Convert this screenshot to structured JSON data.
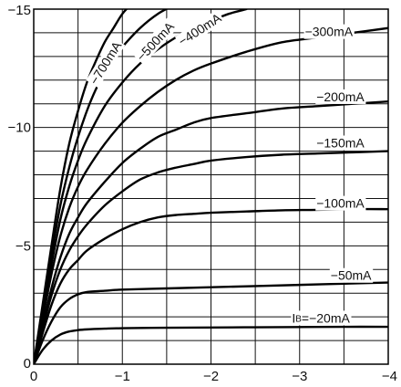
{
  "chart_data": {
    "type": "line",
    "title": "",
    "xlabel": "",
    "ylabel": "",
    "xlim": [
      0,
      -4
    ],
    "ylim": [
      0,
      -15
    ],
    "grid": true,
    "x_ticks": [
      0,
      -0.5,
      -1,
      -1.5,
      -2,
      -2.5,
      -3,
      -3.5,
      -4
    ],
    "x_tick_labels": [
      "0",
      "",
      "−1",
      "",
      "−2",
      "",
      "−3",
      "",
      "−4"
    ],
    "y_ticks": [
      0,
      -1,
      -2,
      -3,
      -4,
      -5,
      -6,
      -7,
      -8,
      -9,
      -10,
      -11,
      -12,
      -13,
      -14,
      -15
    ],
    "y_tick_labels": [
      "0",
      "",
      "",
      "",
      "",
      "−5",
      "",
      "",
      "",
      "",
      "−10",
      "",
      "",
      "",
      "",
      "−15"
    ],
    "series": [
      {
        "name": "−700mA",
        "x": [
          0,
          -0.1,
          -0.2,
          -0.3,
          -0.4,
          -0.5,
          -0.6,
          -0.7,
          -0.8,
          -0.9,
          -1.0,
          -1.1,
          -1.2
        ],
        "y": [
          0,
          -2.5,
          -5.0,
          -7.4,
          -9.3,
          -10.7,
          -11.9,
          -12.8,
          -13.6,
          -14.2,
          -14.8,
          -15.2,
          -15.5
        ]
      },
      {
        "name": "−500mA",
        "x": [
          0,
          -0.1,
          -0.2,
          -0.3,
          -0.4,
          -0.5,
          -0.6,
          -0.7,
          -0.8,
          -0.9,
          -1.0,
          -1.2,
          -1.4,
          -1.6,
          -1.75
        ],
        "y": [
          0,
          -2.3,
          -4.6,
          -6.7,
          -8.3,
          -9.6,
          -10.7,
          -11.6,
          -12.3,
          -12.9,
          -13.4,
          -14.2,
          -14.8,
          -15.2,
          -15.5
        ]
      },
      {
        "name": "−400mA",
        "x": [
          0,
          -0.1,
          -0.2,
          -0.3,
          -0.4,
          -0.5,
          -0.6,
          -0.8,
          -1.0,
          -1.2,
          -1.4,
          -1.6,
          -1.8,
          -2.0,
          -2.2,
          -2.4
        ],
        "y": [
          0,
          -2.1,
          -4.2,
          -6.1,
          -7.5,
          -8.6,
          -9.5,
          -10.9,
          -11.9,
          -12.7,
          -13.3,
          -13.8,
          -14.2,
          -14.5,
          -14.8,
          -15.0
        ]
      },
      {
        "name": "−300mA",
        "x": [
          0,
          -0.1,
          -0.2,
          -0.3,
          -0.4,
          -0.5,
          -0.6,
          -0.8,
          -1.0,
          -1.2,
          -1.4,
          -1.6,
          -1.8,
          -2.0,
          -2.4,
          -2.8,
          -3.2,
          -3.6,
          -4.0
        ],
        "y": [
          0,
          -1.9,
          -3.8,
          -5.4,
          -6.6,
          -7.5,
          -8.2,
          -9.3,
          -10.2,
          -10.9,
          -11.5,
          -12.0,
          -12.4,
          -12.7,
          -13.2,
          -13.6,
          -13.8,
          -14.0,
          -14.2
        ]
      },
      {
        "name": "−200mA",
        "x": [
          0,
          -0.1,
          -0.2,
          -0.3,
          -0.4,
          -0.5,
          -0.6,
          -0.8,
          -1.0,
          -1.2,
          -1.4,
          -1.6,
          -1.8,
          -2.0,
          -2.4,
          -2.8,
          -3.2,
          -3.6,
          -4.0
        ],
        "y": [
          0,
          -1.6,
          -3.2,
          -4.5,
          -5.5,
          -6.2,
          -6.8,
          -7.7,
          -8.5,
          -9.1,
          -9.6,
          -9.9,
          -10.2,
          -10.4,
          -10.6,
          -10.8,
          -10.9,
          -11.0,
          -11.1
        ]
      },
      {
        "name": "−150mA",
        "x": [
          0,
          -0.1,
          -0.2,
          -0.3,
          -0.4,
          -0.5,
          -0.6,
          -0.8,
          -1.0,
          -1.2,
          -1.4,
          -1.6,
          -1.8,
          -2.0,
          -2.4,
          -2.8,
          -3.2,
          -3.6,
          -4.0
        ],
        "y": [
          0,
          -1.5,
          -2.9,
          -4.0,
          -4.8,
          -5.4,
          -5.9,
          -6.7,
          -7.3,
          -7.8,
          -8.1,
          -8.3,
          -8.45,
          -8.6,
          -8.75,
          -8.85,
          -8.9,
          -8.95,
          -9.0
        ]
      },
      {
        "name": "−100mA",
        "x": [
          0,
          -0.1,
          -0.2,
          -0.3,
          -0.4,
          -0.5,
          -0.6,
          -0.8,
          -1.0,
          -1.2,
          -1.4,
          -1.6,
          -1.8,
          -2.0,
          -2.4,
          -2.8,
          -3.2,
          -3.6,
          -4.0
        ],
        "y": [
          0,
          -1.3,
          -2.5,
          -3.4,
          -4.0,
          -4.4,
          -4.8,
          -5.3,
          -5.7,
          -6.0,
          -6.2,
          -6.3,
          -6.35,
          -6.4,
          -6.45,
          -6.5,
          -6.52,
          -6.55,
          -6.55
        ]
      },
      {
        "name": "−50mA",
        "x": [
          0,
          -0.1,
          -0.2,
          -0.3,
          -0.4,
          -0.5,
          -0.6,
          -0.8,
          -1.0,
          -1.5,
          -2.0,
          -2.5,
          -3.0,
          -3.5,
          -4.0
        ],
        "y": [
          0,
          -1.0,
          -1.8,
          -2.4,
          -2.75,
          -2.95,
          -3.05,
          -3.1,
          -3.15,
          -3.2,
          -3.25,
          -3.3,
          -3.35,
          -3.4,
          -3.45
        ]
      },
      {
        "name": "IB=−20mA",
        "x": [
          0,
          -0.1,
          -0.2,
          -0.3,
          -0.4,
          -0.5,
          -0.6,
          -0.8,
          -1.0,
          -1.5,
          -2.0,
          -2.5,
          -3.0,
          -3.5,
          -4.0
        ],
        "y": [
          0,
          -0.6,
          -1.0,
          -1.25,
          -1.38,
          -1.44,
          -1.47,
          -1.5,
          -1.52,
          -1.54,
          -1.55,
          -1.56,
          -1.57,
          -1.58,
          -1.58
        ]
      }
    ],
    "curve_labels": [
      {
        "text": "−700mA",
        "x": -0.82,
        "y": -12.7,
        "angle": -58
      },
      {
        "text": "−500mA",
        "x": -1.38,
        "y": -13.6,
        "angle": -47
      },
      {
        "text": "−400mA",
        "x": -1.88,
        "y": -14.1,
        "angle": -33
      },
      {
        "text": "−300mA",
        "x": -3.33,
        "y": -14.0,
        "angle": 0
      },
      {
        "text": "−200mA",
        "x": -3.46,
        "y": -11.25,
        "angle": 0
      },
      {
        "text": "−150mA",
        "x": -3.46,
        "y": -9.3,
        "angle": 0
      },
      {
        "text": "−100mA",
        "x": -3.46,
        "y": -6.75,
        "angle": 0
      },
      {
        "text": "−50mA",
        "x": -3.58,
        "y": -3.7,
        "angle": 0
      },
      {
        "text": "IB=−20mA",
        "x": -3.24,
        "y": -1.9,
        "angle": 0
      }
    ],
    "colors": {
      "curve": "#000000",
      "grid": "#111111",
      "frame": "#000000"
    }
  }
}
